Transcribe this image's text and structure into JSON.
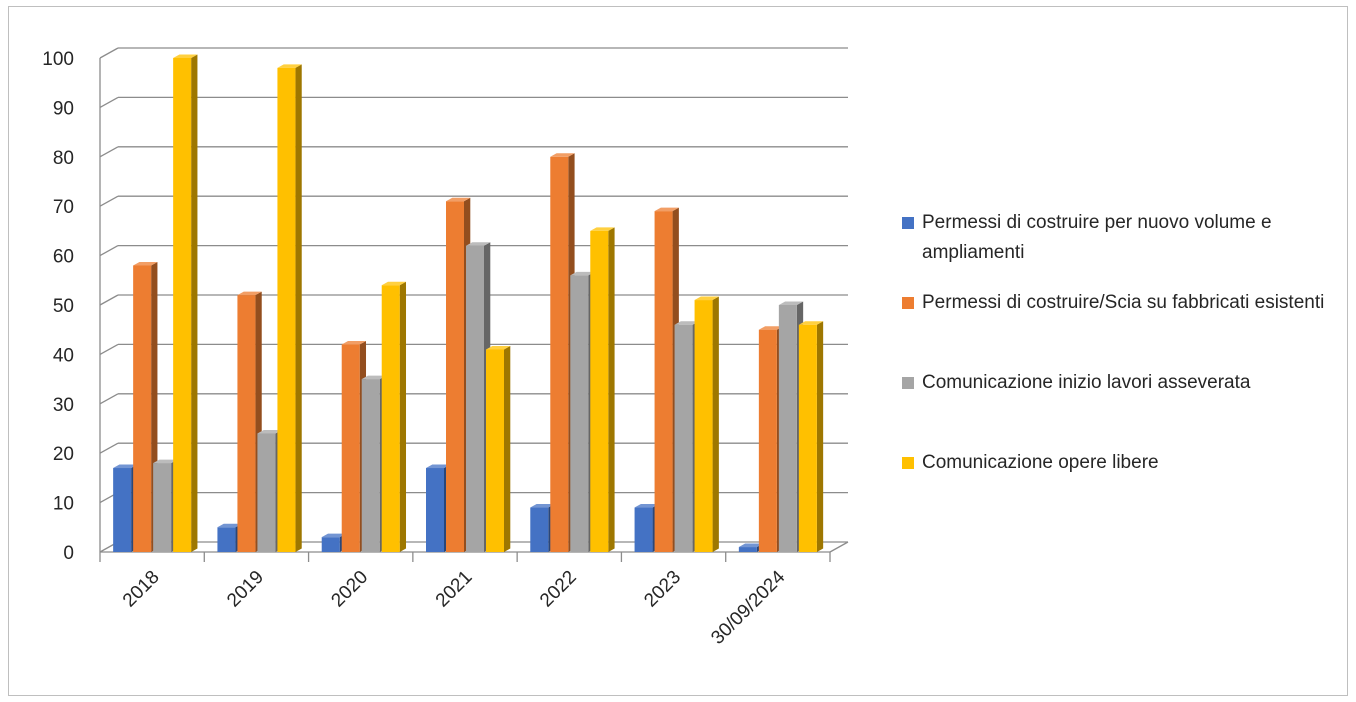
{
  "chart_data": {
    "type": "bar",
    "categories": [
      "2018",
      "2019",
      "2020",
      "2021",
      "2022",
      "2023",
      "30/09/2024"
    ],
    "ylim": [
      0,
      100
    ],
    "yticks": [
      0,
      10,
      20,
      30,
      40,
      50,
      60,
      70,
      80,
      90,
      100
    ],
    "grid": true,
    "legend_position": "right",
    "series": [
      {
        "name": "Permessi di costruire per nuovo volume e ampliamenti",
        "color": "#4472c4",
        "values": [
          17,
          5,
          3,
          17,
          9,
          9,
          1
        ]
      },
      {
        "name": "Permessi di costruire/Scia su fabbricati esistenti",
        "color": "#ed7d31",
        "values": [
          58,
          52,
          42,
          71,
          80,
          69,
          45
        ]
      },
      {
        "name": "Comunicazione inizio lavori asseverata",
        "color": "#a5a5a5",
        "values": [
          18,
          24,
          35,
          62,
          56,
          46,
          50
        ]
      },
      {
        "name": "Comunicazione opere libere",
        "color": "#ffc000",
        "values": [
          100,
          98,
          54,
          41,
          65,
          51,
          46
        ]
      }
    ]
  }
}
